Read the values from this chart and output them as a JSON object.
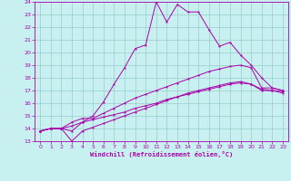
{
  "xlabel": "Windchill (Refroidissement éolien,°C)",
  "xlim": [
    -0.5,
    23.5
  ],
  "ylim": [
    13,
    24
  ],
  "xticks": [
    0,
    1,
    2,
    3,
    4,
    5,
    6,
    7,
    8,
    9,
    10,
    11,
    12,
    13,
    14,
    15,
    16,
    17,
    18,
    19,
    20,
    21,
    22,
    23
  ],
  "yticks": [
    13,
    14,
    15,
    16,
    17,
    18,
    19,
    20,
    21,
    22,
    23,
    24
  ],
  "bg_color": "#c8f0f0",
  "line_color": "#aa00aa",
  "grid_color": "#99cccc",
  "line1_x": [
    0,
    1,
    2,
    3,
    4,
    5,
    6,
    7,
    8,
    9,
    10,
    11,
    12,
    13,
    14,
    15,
    16,
    17,
    18,
    19,
    20,
    21,
    22,
    23
  ],
  "line1_y": [
    13.8,
    14.0,
    14.0,
    13.8,
    14.5,
    15.0,
    16.1,
    17.5,
    18.8,
    20.3,
    20.6,
    24.0,
    22.4,
    23.8,
    23.2,
    23.2,
    21.8,
    20.5,
    20.8,
    19.8,
    19.0,
    18.0,
    17.2,
    17.0
  ],
  "line2_x": [
    0,
    1,
    2,
    3,
    4,
    5,
    6,
    7,
    8,
    9,
    10,
    11,
    12,
    13,
    14,
    15,
    16,
    17,
    18,
    19,
    20,
    21,
    22,
    23
  ],
  "line2_y": [
    13.8,
    14.0,
    14.0,
    14.5,
    14.8,
    14.8,
    15.2,
    15.6,
    16.0,
    16.4,
    16.7,
    17.0,
    17.3,
    17.6,
    17.9,
    18.2,
    18.5,
    18.7,
    18.9,
    19.0,
    18.8,
    17.2,
    17.2,
    17.0
  ],
  "line3_x": [
    0,
    1,
    2,
    3,
    4,
    5,
    6,
    7,
    8,
    9,
    10,
    11,
    12,
    13,
    14,
    15,
    16,
    17,
    18,
    19,
    20,
    21,
    22,
    23
  ],
  "line3_y": [
    13.8,
    14.0,
    14.0,
    13.0,
    13.8,
    14.1,
    14.4,
    14.7,
    15.0,
    15.3,
    15.6,
    15.9,
    16.2,
    16.5,
    16.7,
    16.9,
    17.1,
    17.3,
    17.5,
    17.6,
    17.5,
    17.0,
    17.0,
    16.9
  ],
  "line4_x": [
    0,
    1,
    2,
    3,
    4,
    5,
    6,
    7,
    8,
    9,
    10,
    11,
    12,
    13,
    14,
    15,
    16,
    17,
    18,
    19,
    20,
    21,
    22,
    23
  ],
  "line4_y": [
    13.8,
    14.0,
    14.0,
    14.2,
    14.5,
    14.7,
    14.9,
    15.1,
    15.3,
    15.6,
    15.8,
    16.0,
    16.3,
    16.5,
    16.8,
    17.0,
    17.2,
    17.4,
    17.6,
    17.7,
    17.5,
    17.1,
    17.0,
    16.8
  ]
}
